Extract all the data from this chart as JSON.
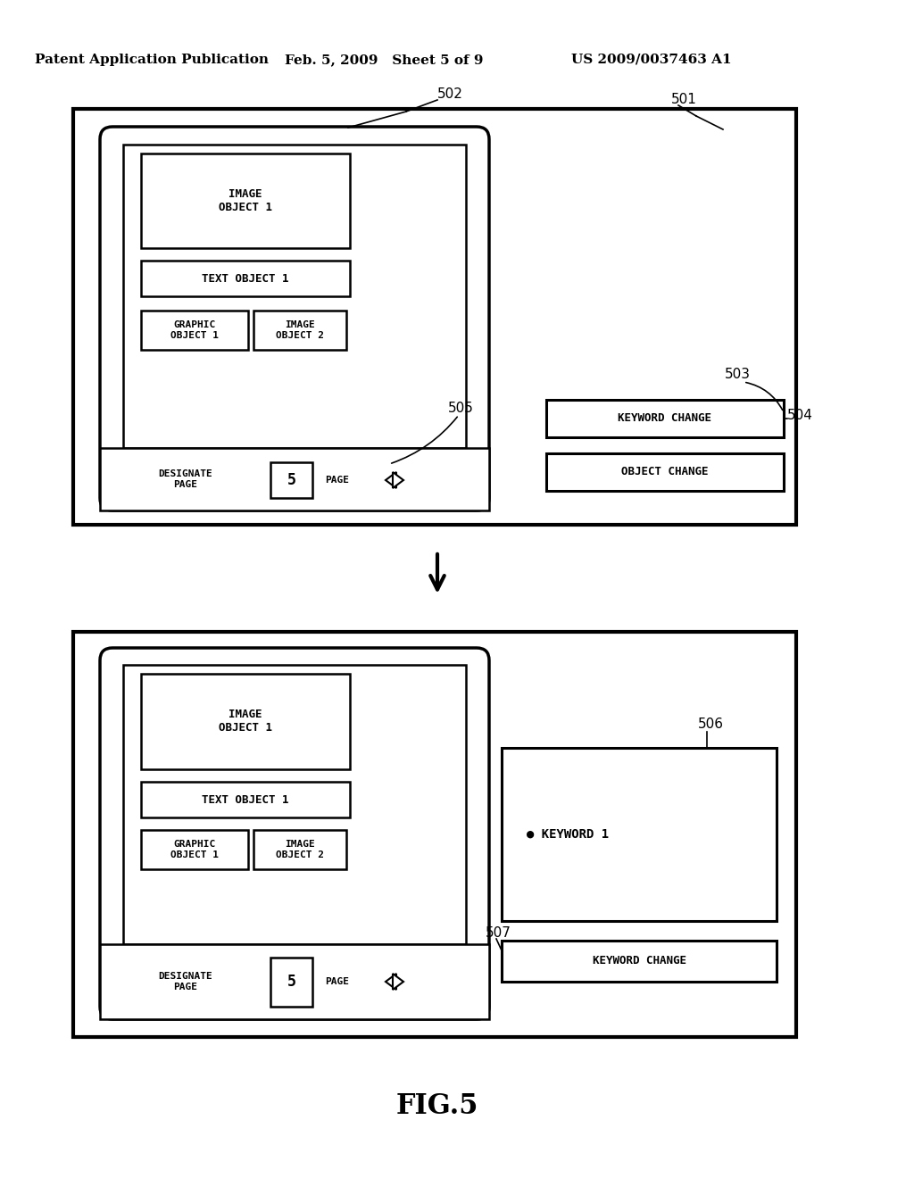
{
  "bg_color": "#ffffff",
  "header_text1": "Patent Application Publication",
  "header_text2": "Feb. 5, 2009   Sheet 5 of 9",
  "header_text3": "US 2009/0037463 A1",
  "fig_label": "FIG.5"
}
